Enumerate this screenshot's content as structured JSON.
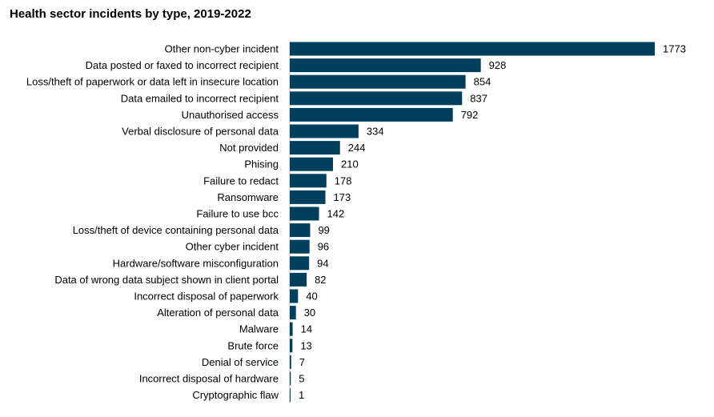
{
  "chart_data": {
    "type": "bar",
    "orientation": "horizontal",
    "title": "Health sector incidents by type, 2019-2022",
    "xlabel": "",
    "ylabel": "",
    "grid": false,
    "legend": "none",
    "bar_color": "#003f5c",
    "xlim": [
      0,
      1773
    ],
    "categories": [
      "Other non-cyber incident",
      "Data posted or faxed to incorrect recipient",
      "Loss/theft of paperwork or data left in insecure location",
      "Data emailed to incorrect recipient",
      "Unauthorised access",
      "Verbal disclosure of personal data",
      "Not provided",
      "Phising",
      "Failure to redact",
      "Ransomware",
      "Failure to use bcc",
      "Loss/theft of device containing personal data",
      "Other cyber incident",
      "Hardware/software misconfiguration",
      "Data of wrong data subject shown in client portal",
      "Incorrect disposal of paperwork",
      "Alteration of personal data",
      "Malware",
      "Brute force",
      "Denial of service",
      "Incorrect disposal of hardware",
      "Cryptographic flaw"
    ],
    "values": [
      1773,
      928,
      854,
      837,
      792,
      334,
      244,
      210,
      178,
      173,
      142,
      99,
      96,
      94,
      82,
      40,
      30,
      14,
      13,
      7,
      5,
      1
    ],
    "value_labels": [
      "1773",
      "928",
      "854",
      "837",
      "792",
      "334",
      "244",
      "210",
      "178",
      "173",
      "142",
      "99",
      "96",
      "94",
      "82",
      "40",
      "30",
      "14",
      "13",
      "7",
      "5",
      "1"
    ]
  }
}
